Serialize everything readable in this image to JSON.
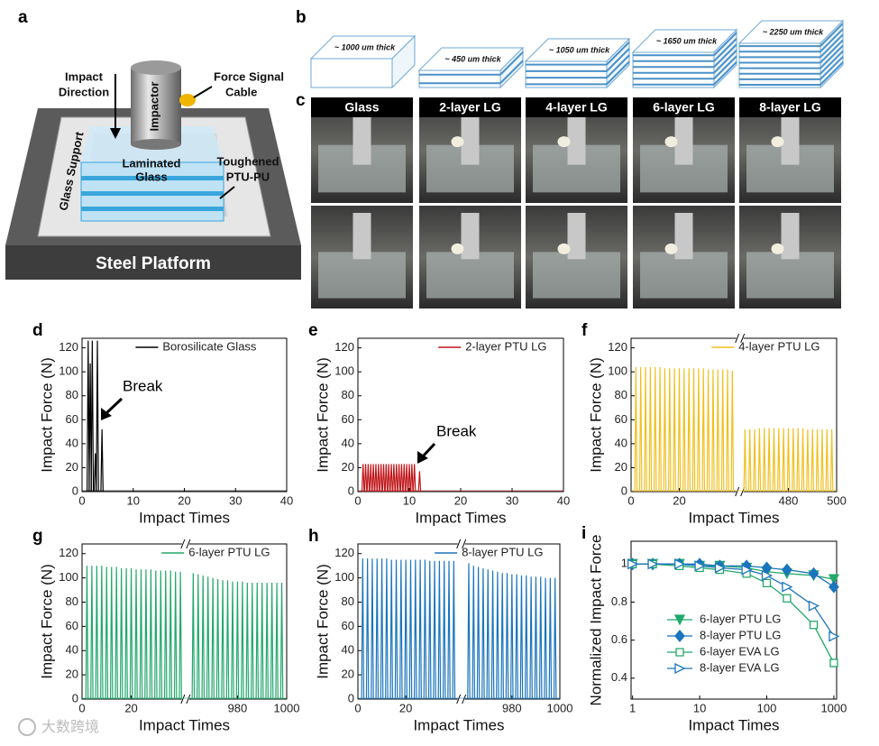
{
  "panel_a": {
    "label": "a",
    "impact_direction": [
      "Impact",
      "Direction"
    ],
    "impactor": "Impactor",
    "cable": [
      "Force Signal",
      "Cable"
    ],
    "glass": [
      "Laminated",
      "Glass"
    ],
    "interlayer": [
      "Toughened",
      "PTU-PU"
    ],
    "support": "Glass Support",
    "platform": "Steel Platform"
  },
  "panel_b": {
    "label": "b",
    "thickness": [
      "~ 1000 um thick",
      "~ 450 um thick",
      "~ 1050 um thick",
      "~ 1650 um thick",
      "~ 2250 um thick"
    ]
  },
  "panel_c": {
    "label": "c",
    "samples": [
      "Glass",
      "2-layer LG",
      "4-layer LG",
      "6-layer LG",
      "8-layer LG"
    ]
  },
  "watermark": "大数跨境",
  "chart_data": [
    {
      "type": "spike",
      "panel": "d",
      "xlabel": "Impact Times",
      "ylabel": "Impact Force (N)",
      "annotation": "Break",
      "xlim": [
        0,
        40
      ],
      "xticks": [
        0,
        10,
        20,
        30,
        40
      ],
      "ylim": [
        0,
        128
      ],
      "yticks": [
        0,
        20,
        40,
        60,
        80,
        100,
        120
      ],
      "series": [
        {
          "name": "Borosilicate Glass",
          "color": "#000000",
          "x": [
            1.2,
            1.6,
            2.0,
            2.6,
            3.0,
            3.9
          ],
          "values": [
            126,
            107,
            126,
            32,
            126,
            52
          ]
        }
      ]
    },
    {
      "type": "spike",
      "panel": "e",
      "xlabel": "Impact Times",
      "ylabel": "Impact Force (N)",
      "annotation": "Break",
      "xlim": [
        0,
        40
      ],
      "xticks": [
        0,
        10,
        20,
        30,
        40
      ],
      "ylim": [
        0,
        128
      ],
      "yticks": [
        0,
        20,
        40,
        60,
        80,
        100,
        120
      ],
      "series": [
        {
          "name": "2-layer PTU LG",
          "color": "#c0161a",
          "x": [
            1,
            1.5,
            2,
            2.5,
            3,
            3.5,
            4,
            4.5,
            5,
            5.5,
            6,
            6.5,
            7,
            7.5,
            8,
            8.5,
            9,
            9.5,
            10,
            10.5,
            11,
            12
          ],
          "values": [
            23,
            23,
            23,
            23,
            23,
            23,
            23,
            23,
            23,
            23,
            23,
            23,
            23,
            23,
            23,
            23,
            23,
            23,
            23,
            23,
            23,
            17
          ]
        }
      ]
    },
    {
      "type": "spike",
      "panel": "f",
      "xlabel": "Impact Times",
      "ylabel": "Impact Force (N)",
      "x_segments": [
        {
          "xlim": [
            0,
            44
          ],
          "xticks": [
            0,
            20
          ]
        },
        {
          "xlim": [
            461,
            500
          ],
          "xticks": [
            480,
            500
          ]
        }
      ],
      "ylim": [
        0,
        128
      ],
      "yticks": [
        0,
        20,
        40,
        60,
        80,
        100,
        120
      ],
      "series": [
        {
          "name": "4-layer PTU LG",
          "color": "#f0c020",
          "x": [
            2,
            4,
            6,
            8,
            10,
            12,
            14,
            16,
            18,
            20,
            22,
            24,
            26,
            28,
            30,
            32,
            34,
            36,
            38,
            40,
            42,
            462,
            464,
            466,
            468,
            470,
            472,
            474,
            476,
            478,
            480,
            482,
            484,
            486,
            488,
            490,
            492,
            494,
            496,
            498
          ],
          "values": [
            104,
            104,
            104,
            104,
            104,
            104,
            103,
            103,
            103,
            103,
            103,
            103,
            103,
            103,
            103,
            102,
            102,
            102,
            102,
            102,
            101,
            52,
            52,
            52,
            53,
            53,
            53,
            53,
            53,
            53,
            53,
            53,
            53,
            53,
            52,
            52,
            52,
            52,
            52,
            52
          ]
        }
      ]
    },
    {
      "type": "spike",
      "panel": "g",
      "xlabel": "Impact Times",
      "ylabel": "Impact Force (N)",
      "x_segments": [
        {
          "xlim": [
            0,
            41
          ],
          "xticks": [
            0,
            20
          ]
        },
        {
          "xlim": [
            960,
            1000
          ],
          "xticks": [
            980,
            1000
          ]
        }
      ],
      "ylim": [
        0,
        128
      ],
      "yticks": [
        0,
        20,
        40,
        60,
        80,
        100,
        120
      ],
      "series": [
        {
          "name": "6-layer PTU LG",
          "color": "#22a86b",
          "x": [
            2,
            4,
            6,
            8,
            10,
            12,
            14,
            16,
            18,
            20,
            22,
            24,
            26,
            28,
            30,
            32,
            34,
            36,
            38,
            40,
            962,
            964,
            966,
            968,
            970,
            972,
            974,
            976,
            978,
            980,
            982,
            984,
            986,
            988,
            990,
            992,
            994,
            996,
            998
          ],
          "values": [
            110,
            110,
            110,
            110,
            109,
            109,
            109,
            108,
            108,
            108,
            107,
            107,
            107,
            107,
            106,
            106,
            106,
            106,
            105,
            105,
            104,
            103,
            102,
            101,
            100,
            99,
            98,
            98,
            97,
            97,
            97,
            96,
            96,
            96,
            96,
            96,
            96,
            96,
            96
          ]
        }
      ]
    },
    {
      "type": "spike",
      "panel": "h",
      "xlabel": "Impact Times",
      "ylabel": "Impact Force (N)",
      "x_segments": [
        {
          "xlim": [
            0,
            42
          ],
          "xticks": [
            0,
            20
          ]
        },
        {
          "xlim": [
            960,
            1000
          ],
          "xticks": [
            980,
            1000
          ]
        }
      ],
      "ylim": [
        0,
        128
      ],
      "yticks": [
        0,
        20,
        40,
        60,
        80,
        100,
        120
      ],
      "series": [
        {
          "name": "8-layer PTU LG",
          "color": "#1b75bc",
          "x": [
            2,
            4,
            6,
            8,
            10,
            12,
            14,
            16,
            18,
            20,
            22,
            24,
            26,
            28,
            30,
            32,
            34,
            36,
            38,
            40,
            962,
            964,
            966,
            968,
            970,
            972,
            974,
            976,
            978,
            980,
            982,
            984,
            986,
            988,
            990,
            992,
            994,
            996,
            998
          ],
          "values": [
            116,
            116,
            116,
            116,
            116,
            116,
            115,
            115,
            115,
            115,
            115,
            115,
            115,
            115,
            114,
            114,
            114,
            114,
            114,
            114,
            112,
            110,
            109,
            108,
            107,
            106,
            105,
            104,
            104,
            103,
            103,
            102,
            102,
            101,
            101,
            101,
            100,
            100,
            100
          ]
        }
      ]
    },
    {
      "type": "scatter",
      "panel": "i",
      "xlabel": "Impact Times",
      "ylabel": "Normalized Impact Force",
      "xscale": "log",
      "xlim": [
        0.95,
        1100
      ],
      "xticks": [
        1,
        10,
        100,
        1000
      ],
      "ylim": [
        0.29,
        1.12
      ],
      "yticks": [
        0.4,
        0.6,
        0.8,
        1
      ],
      "legend": "lower-right",
      "series": [
        {
          "name": "6-layer PTU LG",
          "color": "#22a86b",
          "marker": "triangle-down",
          "x": [
            1,
            2,
            5,
            10,
            20,
            50,
            100,
            200,
            500,
            1000
          ],
          "values": [
            1,
            1,
            1,
            0.99,
            0.99,
            0.98,
            0.96,
            0.95,
            0.94,
            0.92
          ]
        },
        {
          "name": "8-layer PTU LG",
          "color": "#1b75bc",
          "marker": "diamond",
          "x": [
            1,
            2,
            5,
            10,
            20,
            50,
            100,
            200,
            500,
            1000
          ],
          "values": [
            1,
            1,
            1,
            1,
            0.99,
            0.99,
            0.98,
            0.97,
            0.95,
            0.88
          ]
        },
        {
          "name": "6-layer EVA LG",
          "color": "#22a86b",
          "marker": "square-open",
          "x": [
            1,
            2,
            5,
            10,
            20,
            50,
            100,
            200,
            500,
            1000
          ],
          "values": [
            1,
            1,
            0.99,
            0.98,
            0.97,
            0.95,
            0.9,
            0.82,
            0.68,
            0.48
          ]
        },
        {
          "name": "8-layer EVA LG",
          "color": "#1b75bc",
          "marker": "triangle-right-open",
          "x": [
            1,
            2,
            5,
            10,
            20,
            50,
            100,
            200,
            500,
            1000
          ],
          "values": [
            1,
            1,
            1,
            0.99,
            0.98,
            0.97,
            0.94,
            0.88,
            0.78,
            0.62
          ]
        }
      ]
    }
  ]
}
